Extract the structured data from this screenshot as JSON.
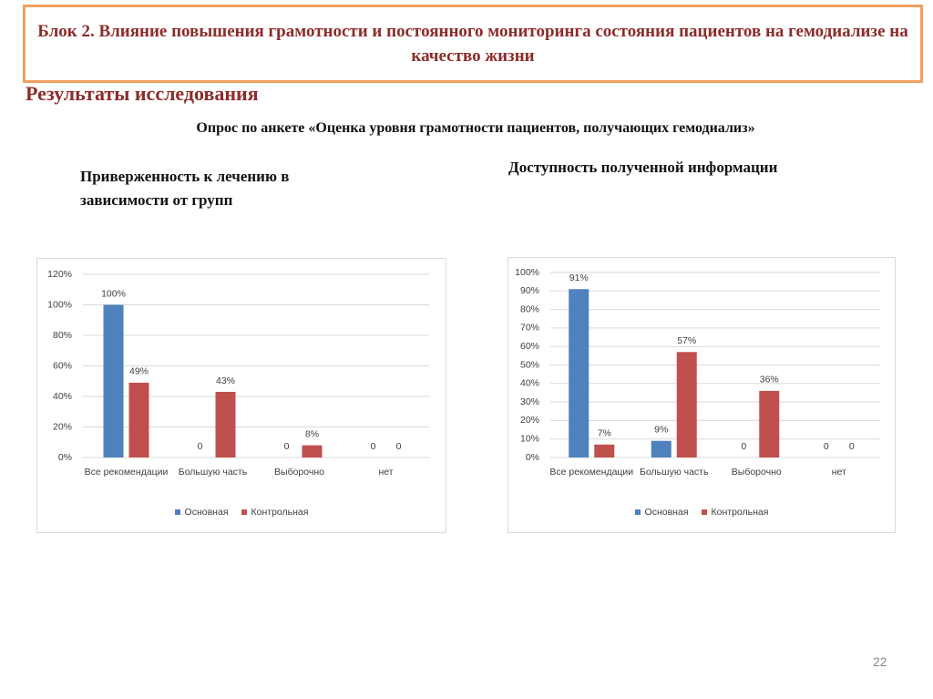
{
  "title": "Блок 2. Влияние повышения грамотности и постоянного мониторинга состояния пациентов на гемодиализе на качество жизни",
  "section": "Результаты исследования",
  "survey": "Опрос по анкете «Оценка уровня грамотности пациентов, получающих гемодиализ»",
  "page_number": "22",
  "chart_data": [
    {
      "type": "bar",
      "title": "Приверженность к лечению в зависимости от групп",
      "categories": [
        "Все рекомендации",
        "Большую часть",
        "Выборочно",
        "нет"
      ],
      "series": [
        {
          "name": "Основная",
          "color": "#4f81bd",
          "values": [
            100,
            0,
            0,
            0
          ],
          "value_labels": [
            "100%",
            "0",
            "0",
            "0"
          ]
        },
        {
          "name": "Контрольная",
          "color": "#c0504d",
          "values": [
            49,
            43,
            8,
            0
          ],
          "value_labels": [
            "49%",
            "43%",
            "8%",
            "0"
          ]
        }
      ],
      "ylim": [
        0,
        120
      ],
      "yticks": [
        {
          "value": 0,
          "label": "0%"
        },
        {
          "value": 20,
          "label": "20%"
        },
        {
          "value": 40,
          "label": "40%"
        },
        {
          "value": 60,
          "label": "60%"
        },
        {
          "value": 80,
          "label": "80%"
        },
        {
          "value": 100,
          "label": "100%"
        },
        {
          "value": 120,
          "label": "120%"
        }
      ],
      "grid": true,
      "legend": "bottom"
    },
    {
      "type": "bar",
      "title": "Доступность полученной информации",
      "categories": [
        "Все рекомендации",
        "Большую часть",
        "Выборочно",
        "нет"
      ],
      "series": [
        {
          "name": "Основная",
          "color": "#4f81bd",
          "values": [
            91,
            9,
            0,
            0
          ],
          "value_labels": [
            "91%",
            "9%",
            "0",
            "0"
          ]
        },
        {
          "name": "Контрольная",
          "color": "#c0504d",
          "values": [
            7,
            57,
            36,
            0
          ],
          "value_labels": [
            "7%",
            "57%",
            "36%",
            "0"
          ]
        }
      ],
      "ylim": [
        0,
        100
      ],
      "yticks": [
        {
          "value": 0,
          "label": "0%"
        },
        {
          "value": 10,
          "label": "10%"
        },
        {
          "value": 20,
          "label": "20%"
        },
        {
          "value": 30,
          "label": "30%"
        },
        {
          "value": 40,
          "label": "40%"
        },
        {
          "value": 50,
          "label": "50%"
        },
        {
          "value": 60,
          "label": "60%"
        },
        {
          "value": 70,
          "label": "70%"
        },
        {
          "value": 80,
          "label": "80%"
        },
        {
          "value": 90,
          "label": "90%"
        },
        {
          "value": 100,
          "label": "100%"
        }
      ],
      "grid": true,
      "legend": "bottom"
    }
  ]
}
